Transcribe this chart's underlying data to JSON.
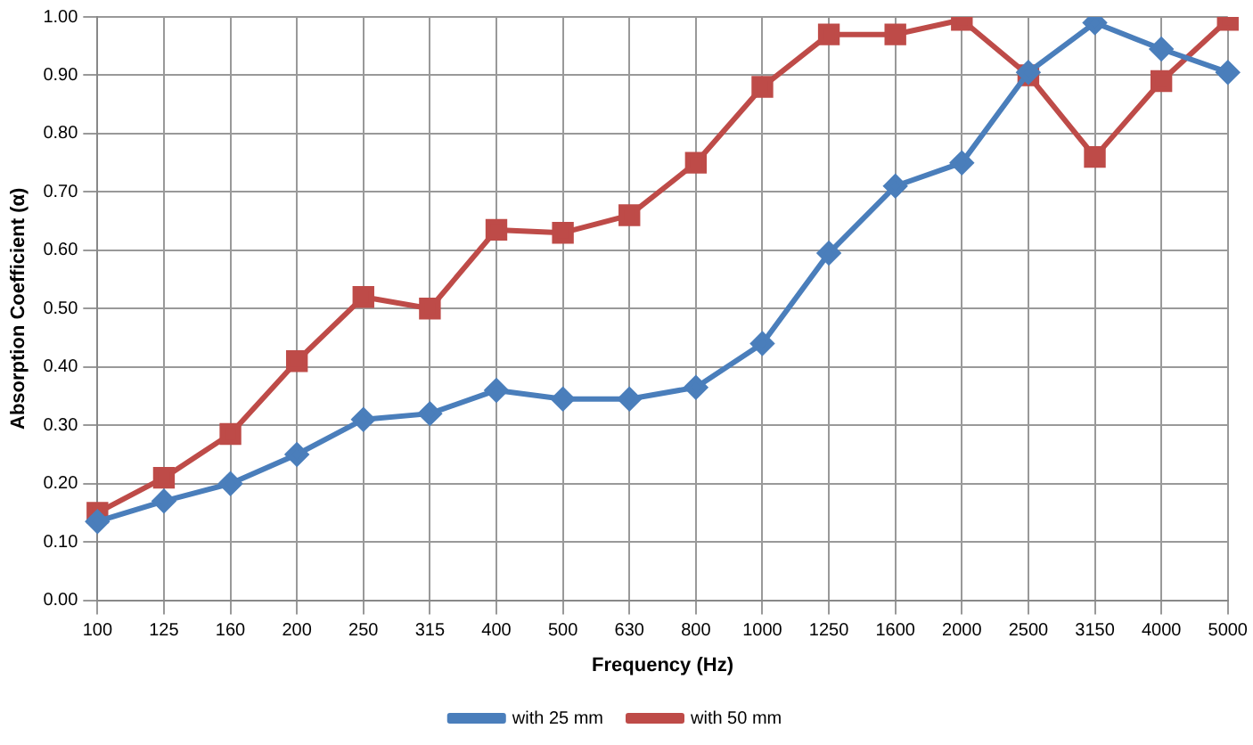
{
  "chart_data": {
    "type": "line",
    "xlabel": "Frequency (Hz)",
    "ylabel": "Absorption Coefficient (α)",
    "categories": [
      "100",
      "125",
      "160",
      "200",
      "250",
      "315",
      "400",
      "500",
      "630",
      "800",
      "1000",
      "1250",
      "1600",
      "2000",
      "2500",
      "3150",
      "4000",
      "5000"
    ],
    "series": [
      {
        "name": "with 25 mm",
        "color": "#4a7ebb",
        "marker": "diamond",
        "values": [
          0.135,
          0.17,
          0.2,
          0.25,
          0.31,
          0.32,
          0.36,
          0.345,
          0.345,
          0.365,
          0.44,
          0.595,
          0.71,
          0.75,
          0.905,
          0.99,
          0.945,
          0.905
        ]
      },
      {
        "name": "with 50 mm",
        "color": "#be4b48",
        "marker": "square",
        "values": [
          0.15,
          0.21,
          0.285,
          0.41,
          0.52,
          0.5,
          0.635,
          0.63,
          0.66,
          0.75,
          0.88,
          0.97,
          0.97,
          0.995,
          0.9,
          0.76,
          0.89,
          0.995
        ]
      }
    ],
    "ylim": [
      0,
      1
    ],
    "yticks": [
      {
        "value": 0,
        "label": "0.00"
      },
      {
        "value": 0.1,
        "label": "0.10"
      },
      {
        "value": 0.2,
        "label": "0.20"
      },
      {
        "value": 0.3,
        "label": "0.30"
      },
      {
        "value": 0.4,
        "label": "0.40"
      },
      {
        "value": 0.5,
        "label": "0.50"
      },
      {
        "value": 0.6,
        "label": "0.60"
      },
      {
        "value": 0.7,
        "label": "0.70"
      },
      {
        "value": 0.8,
        "label": "0.80"
      },
      {
        "value": 0.9,
        "label": "0.90"
      },
      {
        "value": 1,
        "label": "1.00"
      }
    ],
    "grid": true,
    "legend": "bottom",
    "line_style": "solid"
  }
}
